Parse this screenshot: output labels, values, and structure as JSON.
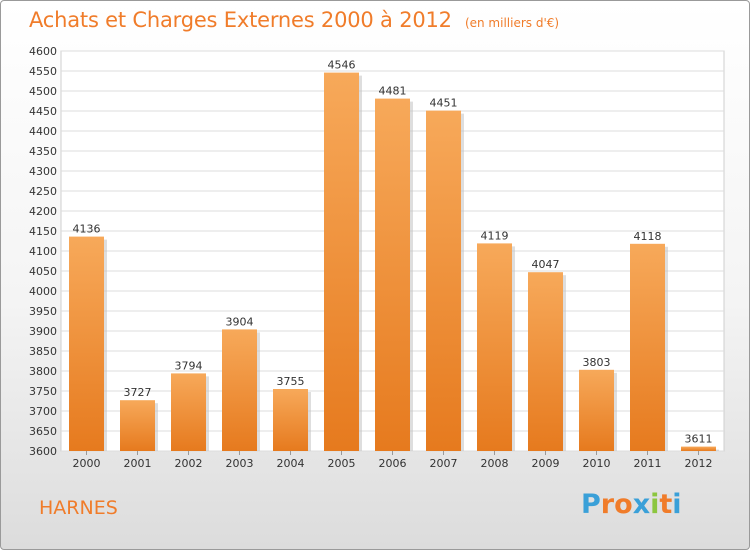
{
  "chart_data": {
    "type": "bar",
    "title": "Achats et Charges Externes 2000 à 2012",
    "subtitle": "(en milliers d'€)",
    "categories": [
      "2000",
      "2001",
      "2002",
      "2003",
      "2004",
      "2005",
      "2006",
      "2007",
      "2008",
      "2009",
      "2010",
      "2011",
      "2012"
    ],
    "values": [
      4136,
      3727,
      3794,
      3904,
      3755,
      4546,
      4481,
      4451,
      4119,
      4047,
      3803,
      4118,
      3611
    ],
    "xlabel": "",
    "ylabel": "",
    "ylim": [
      3600,
      4600
    ],
    "ytick_step": 50,
    "grid": true,
    "bar_color_top": "#f7a95a",
    "bar_color_bottom": "#e67a1e",
    "grid_color": "#dddddd"
  },
  "location": "HARNES",
  "logo": {
    "text": "Proxiti",
    "colors": [
      "#3aa0d8",
      "#f07c2a",
      "#f07c2a",
      "#3aa0d8",
      "#8cc63f",
      "#f07c2a",
      "#3aa0d8"
    ]
  }
}
